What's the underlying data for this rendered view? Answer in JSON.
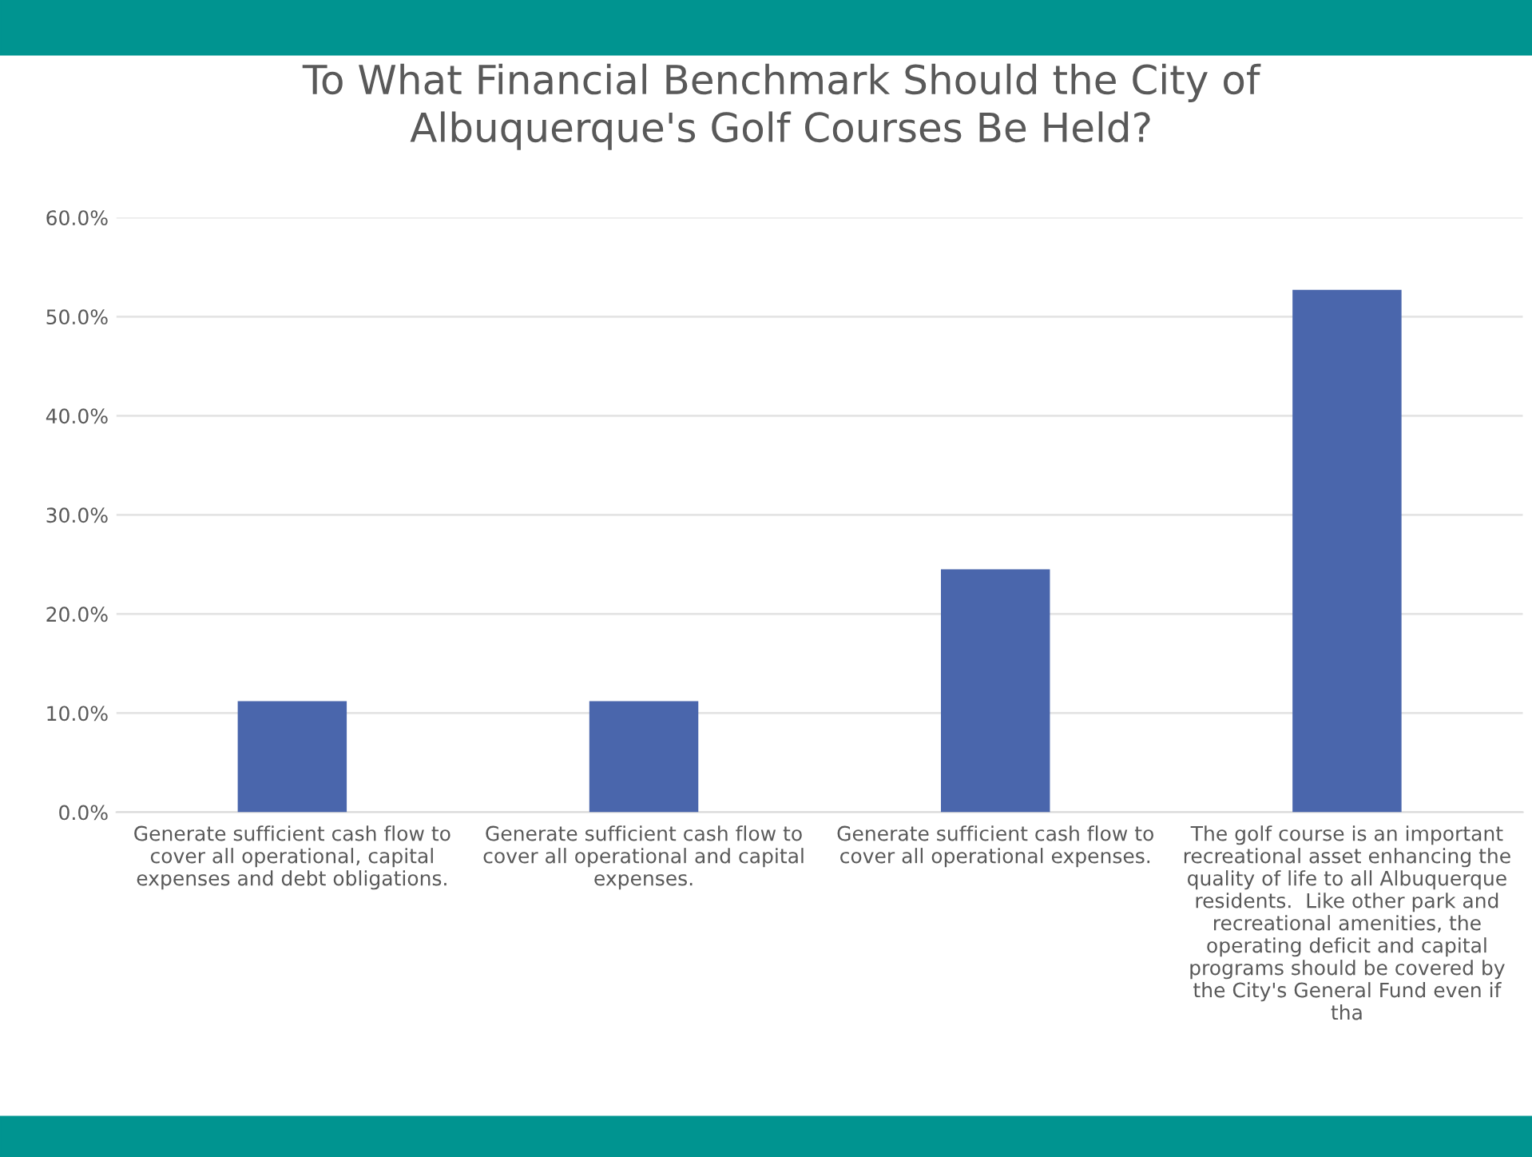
{
  "chart_data": {
    "type": "bar",
    "title": "To What Financial Benchmark Should the City of\nAlbuquerque's Golf Courses Be Held?",
    "categories": [
      "Generate sufficient cash flow to\ncover all operational, capital\nexpenses and debt obligations.",
      "Generate sufficient cash flow to\ncover all operational and capital\nexpenses.",
      "Generate sufficient cash flow to\ncover all operational expenses.",
      "The golf course is an important\nrecreational asset enhancing the\nquality of life to all Albuquerque\nresidents.  Like other park and\nrecreational amenities, the\noperating deficit and capital\nprograms should be covered by\nthe City's General Fund even if\ntha"
    ],
    "values": [
      11.2,
      11.2,
      24.5,
      52.7
    ],
    "color": "#4a66ac",
    "ylim": [
      0,
      60
    ],
    "yticks": [
      {
        "value": 0,
        "label": "0.0%"
      },
      {
        "value": 10,
        "label": "10.0%"
      },
      {
        "value": 20,
        "label": "20.0%"
      },
      {
        "value": 30,
        "label": "30.0%"
      },
      {
        "value": 40,
        "label": "40.0%"
      },
      {
        "value": 50,
        "label": "50.0%"
      },
      {
        "value": 60,
        "label": "60.0%"
      }
    ],
    "grid": "y",
    "legend": false
  }
}
